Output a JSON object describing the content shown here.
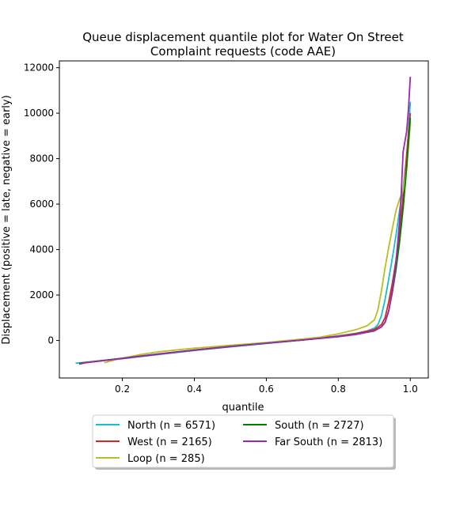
{
  "chart_data": {
    "type": "line",
    "title_line1": "Queue displacement quantile plot for Water On Street",
    "title_line2": "Complaint  requests (code AAE)",
    "xlabel": "quantile",
    "ylabel": "Displacement (positive = late, negative = early)",
    "xlim": [
      0.025,
      1.05
    ],
    "ylim": [
      -1650,
      12300
    ],
    "xticks": [
      0.2,
      0.4,
      0.6,
      0.8,
      1.0
    ],
    "xtick_labels": [
      "0.2",
      "0.4",
      "0.6",
      "0.8",
      "1.0"
    ],
    "yticks": [
      0,
      2000,
      4000,
      6000,
      8000,
      10000,
      12000
    ],
    "ytick_labels": [
      "0",
      "2000",
      "4000",
      "6000",
      "8000",
      "10000",
      "12000"
    ],
    "grid": false,
    "legend_position": "bottom-center (below axes), 2 columns",
    "series": [
      {
        "name": "North (n = 6571)",
        "color": "#17becf",
        "x": [
          0.07,
          0.1,
          0.15,
          0.2,
          0.3,
          0.4,
          0.5,
          0.6,
          0.7,
          0.8,
          0.85,
          0.88,
          0.9,
          0.91,
          0.92,
          0.93,
          0.94,
          0.95,
          0.96,
          0.97,
          0.98,
          0.99,
          1.0
        ],
        "y": [
          -1000,
          -960,
          -880,
          -800,
          -620,
          -440,
          -280,
          -130,
          20,
          200,
          320,
          420,
          540,
          700,
          1100,
          1800,
          2700,
          3600,
          4600,
          5700,
          6700,
          8000,
          10500
        ]
      },
      {
        "name": "West (n = 2165)",
        "color": "#d62728",
        "x": [
          0.08,
          0.1,
          0.15,
          0.2,
          0.3,
          0.4,
          0.5,
          0.6,
          0.7,
          0.8,
          0.85,
          0.9,
          0.92,
          0.93,
          0.94,
          0.95,
          0.96,
          0.97,
          0.98,
          0.99,
          1.0
        ],
        "y": [
          -1020,
          -970,
          -880,
          -790,
          -600,
          -420,
          -260,
          -120,
          20,
          190,
          300,
          480,
          700,
          1000,
          1700,
          2500,
          3500,
          4800,
          6300,
          8200,
          10000
        ]
      },
      {
        "name": "Loop (n = 285)",
        "color": "#bcbd22",
        "x": [
          0.15,
          0.18,
          0.2,
          0.25,
          0.3,
          0.4,
          0.5,
          0.6,
          0.7,
          0.75,
          0.8,
          0.85,
          0.88,
          0.9,
          0.91,
          0.92,
          0.93,
          0.94,
          0.95,
          0.96,
          0.97,
          0.98,
          0.99,
          1.0
        ],
        "y": [
          -980,
          -850,
          -780,
          -620,
          -500,
          -340,
          -210,
          -90,
          60,
          150,
          290,
          480,
          650,
          900,
          1350,
          2200,
          3200,
          4100,
          4900,
          5700,
          6200,
          6600,
          7600,
          9600
        ]
      },
      {
        "name": "South (n = 2727)",
        "color": "#008000",
        "x": [
          0.08,
          0.1,
          0.15,
          0.2,
          0.3,
          0.4,
          0.5,
          0.6,
          0.7,
          0.8,
          0.85,
          0.9,
          0.92,
          0.93,
          0.94,
          0.95,
          0.96,
          0.97,
          0.98,
          0.99,
          1.0
        ],
        "y": [
          -1010,
          -960,
          -870,
          -780,
          -590,
          -420,
          -260,
          -120,
          20,
          170,
          270,
          420,
          600,
          800,
          1300,
          2100,
          3100,
          4300,
          5800,
          7600,
          9800
        ]
      },
      {
        "name": "Far South (n = 2813)",
        "color": "#9c27b0",
        "x": [
          0.08,
          0.1,
          0.15,
          0.2,
          0.3,
          0.4,
          0.5,
          0.6,
          0.7,
          0.8,
          0.85,
          0.9,
          0.92,
          0.93,
          0.94,
          0.95,
          0.96,
          0.97,
          0.975,
          0.98,
          0.99,
          0.995,
          1.0
        ],
        "y": [
          -1040,
          -970,
          -880,
          -790,
          -600,
          -430,
          -270,
          -120,
          20,
          170,
          270,
          430,
          600,
          800,
          1300,
          2200,
          3400,
          5200,
          6500,
          8300,
          9200,
          10200,
          11600
        ]
      }
    ]
  }
}
